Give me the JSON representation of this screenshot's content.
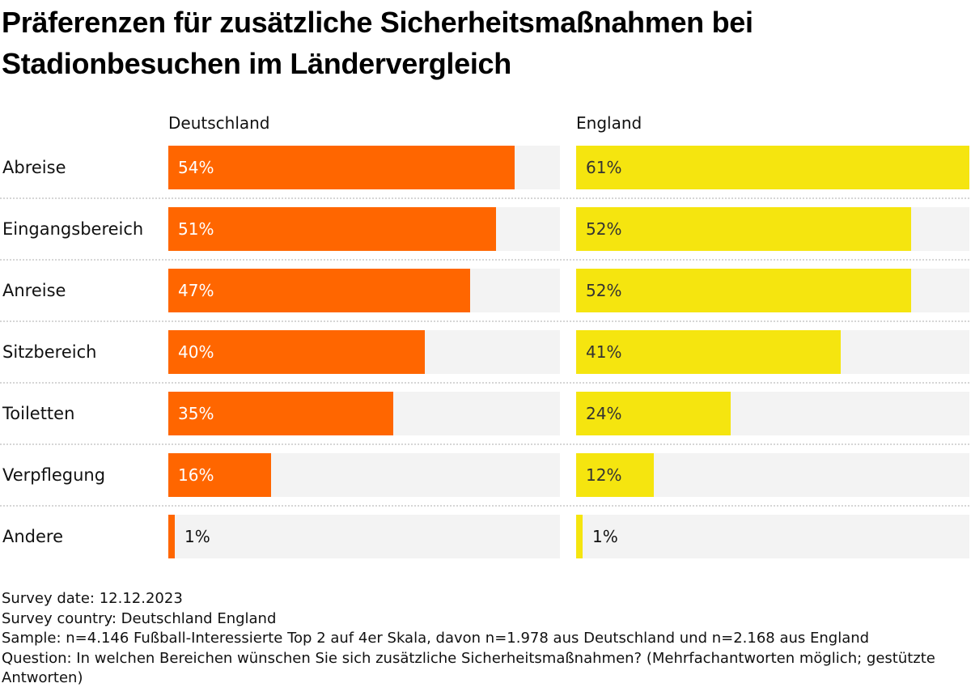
{
  "title": "Präferenzen für zusätzliche Sicherheitsmaßnahmen bei Stadionbesuchen im Ländervergleich",
  "colors": {
    "deutschland": "#ff6600",
    "england": "#f5e50f",
    "track": "#f3f3f3",
    "label_on_orange": "#ffffff",
    "label_on_yellow": "#333333",
    "label_outside": "#111111"
  },
  "chart_data": {
    "type": "bar",
    "orientation": "horizontal",
    "layout": "small-multiples",
    "title": "Präferenzen für zusätzliche Sicherheitsmaßnahmen bei Stadionbesuchen im Ländervergleich",
    "categories": [
      "Abreise",
      "Eingangsbereich",
      "Anreise",
      "Sitzbereich",
      "Toiletten",
      "Verpflegung",
      "Andere"
    ],
    "series": [
      {
        "name": "Deutschland",
        "values": [
          54,
          51,
          47,
          40,
          35,
          16,
          1
        ],
        "labels": [
          "54%",
          "51%",
          "47%",
          "40%",
          "35%",
          "16%",
          "1%"
        ]
      },
      {
        "name": "England",
        "values": [
          61,
          52,
          52,
          41,
          24,
          12,
          1
        ],
        "labels": [
          "61%",
          "52%",
          "52%",
          "41%",
          "24%",
          "12%",
          "1%"
        ]
      }
    ],
    "unit": "%",
    "xlim": [
      0,
      61
    ],
    "xlabel": "",
    "ylabel": "",
    "grid": false,
    "legend": "column headers (top)"
  },
  "footer": {
    "survey_date": "Survey date: 12.12.2023",
    "survey_country": "Survey country: Deutschland England",
    "sample": "Sample: n=4.146 Fußball-Interessierte Top 2 auf 4er Skala, davon n=1.978 aus Deutschland und n=2.168 aus England",
    "question": "Question: In welchen Bereichen wünschen Sie sich zusätzliche Sicherheitsmaßnahmen? (Mehrfachantworten möglich; gestützte Antworten)"
  }
}
